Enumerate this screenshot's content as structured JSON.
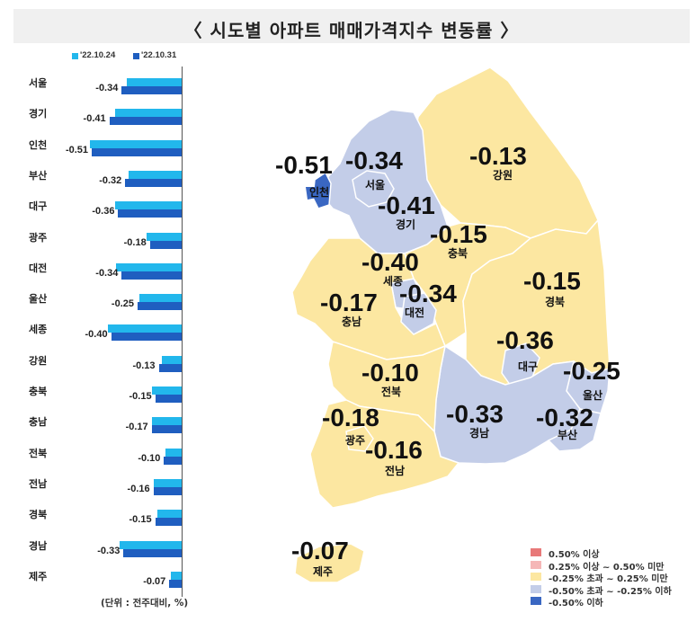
{
  "title": "〈 시도별 아파트 매매가격지수 변동률 〉",
  "colors": {
    "series1": "#22b7ec",
    "series2": "#1f5ec0",
    "legend_ge_050": "#e87979",
    "legend_025_050": "#f5b7b7",
    "legend_neutral": "#fce7a1",
    "legend_neg_025_050": "#c3cde8",
    "legend_le_neg050": "#3a67c2"
  },
  "unit_note": "(단위 : 전주대비, %)",
  "map_legend": [
    {
      "label": "0.50% 이상",
      "color": "#e87979"
    },
    {
      "label": "0.25% 이상 ~ 0.50% 미만",
      "color": "#f5b7b7"
    },
    {
      "label": "-0.25% 초과 ~ 0.25% 미만",
      "color": "#fce7a1"
    },
    {
      "label": "-0.50% 초과 ~ -0.25% 이하",
      "color": "#c3cde8"
    },
    {
      "label": "-0.50% 이하",
      "color": "#3a67c2"
    }
  ],
  "chart_data": {
    "type": "bar",
    "orientation": "horizontal",
    "categories": [
      "서울",
      "경기",
      "인천",
      "부산",
      "대구",
      "광주",
      "대전",
      "울산",
      "세종",
      "강원",
      "충북",
      "충남",
      "전북",
      "전남",
      "경북",
      "경남",
      "제주"
    ],
    "series": [
      {
        "name": "'22.10.24",
        "values": [
          -0.31,
          -0.38,
          -0.52,
          -0.3,
          -0.38,
          -0.2,
          -0.37,
          -0.24,
          -0.42,
          -0.11,
          -0.17,
          -0.17,
          -0.09,
          -0.16,
          -0.14,
          -0.35,
          -0.06
        ]
      },
      {
        "name": "'22.10.31",
        "values": [
          -0.34,
          -0.41,
          -0.51,
          -0.32,
          -0.36,
          -0.18,
          -0.34,
          -0.25,
          -0.4,
          -0.13,
          -0.15,
          -0.17,
          -0.1,
          -0.16,
          -0.15,
          -0.33,
          -0.07
        ]
      }
    ],
    "value_labels": [
      "-0.34",
      "-0.41",
      "-0.51",
      "-0.32",
      "-0.36",
      "-0.18",
      "-0.34",
      "-0.25",
      "-0.40",
      "-0.13",
      "-0.15",
      "-0.17",
      "-0.10",
      "-0.16",
      "-0.15",
      "-0.33",
      "-0.07"
    ],
    "xlim": [
      -0.55,
      0
    ]
  },
  "map": {
    "regions": [
      {
        "name": "서울",
        "value": "-0.34",
        "color": "#c3cde8"
      },
      {
        "name": "경기",
        "value": "-0.41",
        "color": "#c3cde8"
      },
      {
        "name": "인천",
        "value": "-0.51",
        "color": "#3a67c2"
      },
      {
        "name": "강원",
        "value": "-0.13",
        "color": "#fce7a1"
      },
      {
        "name": "충북",
        "value": "-0.15",
        "color": "#fce7a1"
      },
      {
        "name": "세종",
        "value": "-0.40",
        "color": "#c3cde8"
      },
      {
        "name": "충남",
        "value": "-0.17",
        "color": "#fce7a1"
      },
      {
        "name": "대전",
        "value": "-0.34",
        "color": "#c3cde8"
      },
      {
        "name": "경북",
        "value": "-0.15",
        "color": "#fce7a1"
      },
      {
        "name": "대구",
        "value": "-0.36",
        "color": "#c3cde8"
      },
      {
        "name": "울산",
        "value": "-0.25",
        "color": "#c3cde8"
      },
      {
        "name": "전북",
        "value": "-0.10",
        "color": "#fce7a1"
      },
      {
        "name": "광주",
        "value": "-0.18",
        "color": "#fce7a1"
      },
      {
        "name": "경남",
        "value": "-0.33",
        "color": "#c3cde8"
      },
      {
        "name": "부산",
        "value": "-0.32",
        "color": "#c3cde8"
      },
      {
        "name": "전남",
        "value": "-0.16",
        "color": "#fce7a1"
      },
      {
        "name": "제주",
        "value": "-0.07",
        "color": "#fce7a1"
      }
    ]
  }
}
